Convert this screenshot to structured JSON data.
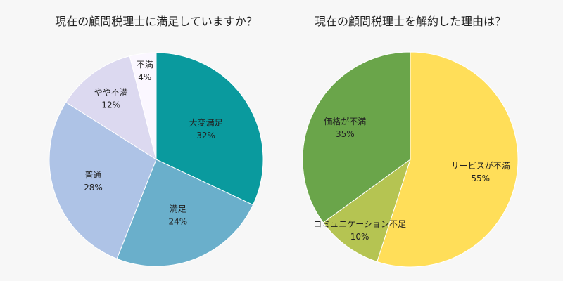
{
  "chart_data": [
    {
      "type": "pie",
      "title": "現在の顧問税理士に満足していますか？",
      "start": "12 o'clock, clockwise",
      "slices": [
        {
          "label": "大変満足",
          "value": 32,
          "value_label": "32%",
          "color": "#0a9a9e"
        },
        {
          "label": "満足",
          "value": 24,
          "value_label": "24%",
          "color": "#6aafcb"
        },
        {
          "label": "普通",
          "value": 28,
          "value_label": "28%",
          "color": "#aec3e6"
        },
        {
          "label": "やや不満",
          "value": 12,
          "value_label": "12%",
          "color": "#dcd9f0"
        },
        {
          "label": "不満",
          "value": 4,
          "value_label": "4%",
          "color": "#fbf7ff"
        }
      ]
    },
    {
      "type": "pie",
      "title": "現在の顧問税理士を解約した理由は？",
      "start": "12 o'clock, clockwise",
      "slices": [
        {
          "label": "サービスが不満",
          "value": 55,
          "value_label": "55%",
          "color": "#ffde59"
        },
        {
          "label": "コミュニケーション不足",
          "value": 10,
          "value_label": "10%",
          "color": "#b5c452"
        },
        {
          "label": "価格が不満",
          "value": 35,
          "value_label": "35%",
          "color": "#6aa54a"
        }
      ]
    }
  ]
}
